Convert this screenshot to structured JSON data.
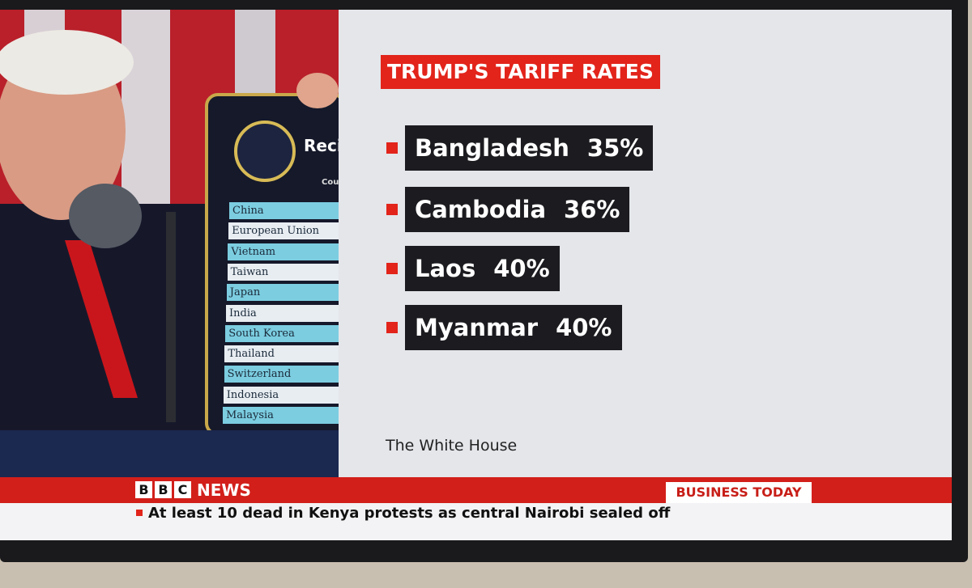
{
  "graphic": {
    "title": "TRUMP'S TARIFF RATES",
    "items": [
      {
        "country": "Bangladesh",
        "rate": "35%"
      },
      {
        "country": "Cambodia",
        "rate": "36%"
      },
      {
        "country": "Laos",
        "rate": "40%"
      },
      {
        "country": "Myanmar",
        "rate": "40%"
      }
    ],
    "source": "The White House"
  },
  "photo_board": {
    "heading": "Reci",
    "column": "Coun",
    "countries": [
      "China",
      "European Union",
      "Vietnam",
      "Taiwan",
      "Japan",
      "India",
      "South Korea",
      "Thailand",
      "Switzerland",
      "Indonesia",
      "Malaysia"
    ]
  },
  "ticker": {
    "logo_letters": [
      "B",
      "B",
      "C"
    ],
    "brand": "NEWS",
    "programme": "BUSINESS TODAY",
    "headline": "At least 10 dead in Kenya protests as central Nairobi sealed off"
  }
}
